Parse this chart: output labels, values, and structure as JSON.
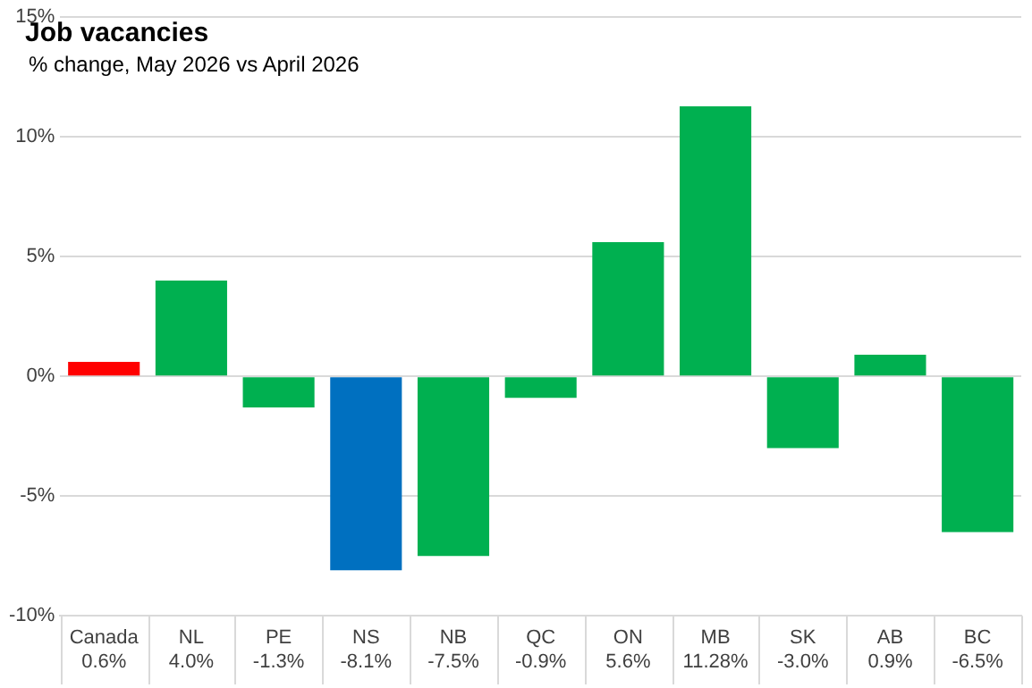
{
  "chart_data": {
    "type": "bar",
    "title": "Job vacancies",
    "subtitle": "% change, May 2026 vs April 2026",
    "categories": [
      "Canada",
      "NL",
      "PE",
      "NS",
      "NB",
      "QC",
      "ON",
      "MB",
      "SK",
      "AB",
      "BC"
    ],
    "values": [
      0.6,
      4.0,
      -1.3,
      -8.1,
      -7.5,
      -0.9,
      5.6,
      11.28,
      -3.0,
      0.9,
      -6.5
    ],
    "value_labels": [
      "0.6%",
      "4.0%",
      "-1.3%",
      "-8.1%",
      "-7.5%",
      "-0.9%",
      "5.6%",
      "11.28%",
      "-3.0%",
      "0.9%",
      "-6.5%"
    ],
    "colors": [
      "#ff0000",
      "#00b050",
      "#00b050",
      "#0070c0",
      "#00b050",
      "#00b050",
      "#00b050",
      "#00b050",
      "#00b050",
      "#00b050",
      "#00b050"
    ],
    "ylim": [
      -10,
      15
    ],
    "yticks": [
      {
        "value": -10,
        "label": "-10%"
      },
      {
        "value": -5,
        "label": "-5%"
      },
      {
        "value": 0,
        "label": "0%"
      },
      {
        "value": 5,
        "label": "5%"
      },
      {
        "value": 10,
        "label": "10%"
      },
      {
        "value": 15,
        "label": "15%"
      }
    ],
    "grid": "y",
    "legend": false
  }
}
